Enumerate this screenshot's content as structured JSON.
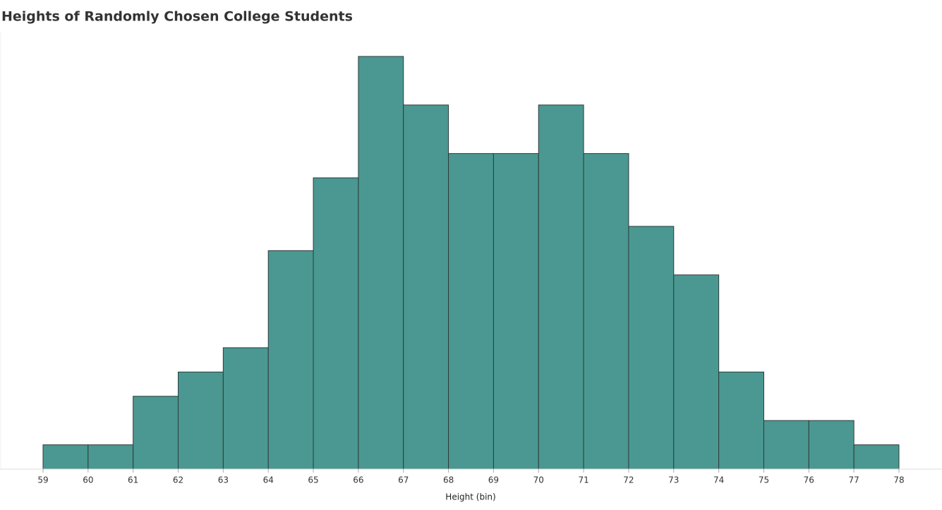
{
  "chart_data": {
    "type": "histogram",
    "title": "Heights of Randomly Chosen College Students",
    "x_label": "Height (bin)",
    "bins": [
      59,
      60,
      61,
      62,
      63,
      64,
      65,
      66,
      67,
      68,
      69,
      70,
      71,
      72,
      73,
      74,
      75,
      76,
      77,
      78
    ],
    "values": [
      1,
      1,
      3,
      4,
      5,
      9,
      12,
      17,
      15,
      13,
      13,
      15,
      13,
      10,
      8,
      4,
      2,
      2,
      1
    ],
    "color": "#4a9891",
    "edge_color": "#2e3b3b",
    "xlim": [
      59,
      78
    ],
    "xticks": [
      59,
      60,
      61,
      62,
      63,
      64,
      65,
      66,
      67,
      68,
      69,
      70,
      71,
      72,
      73,
      74,
      75,
      76,
      77,
      78
    ]
  }
}
